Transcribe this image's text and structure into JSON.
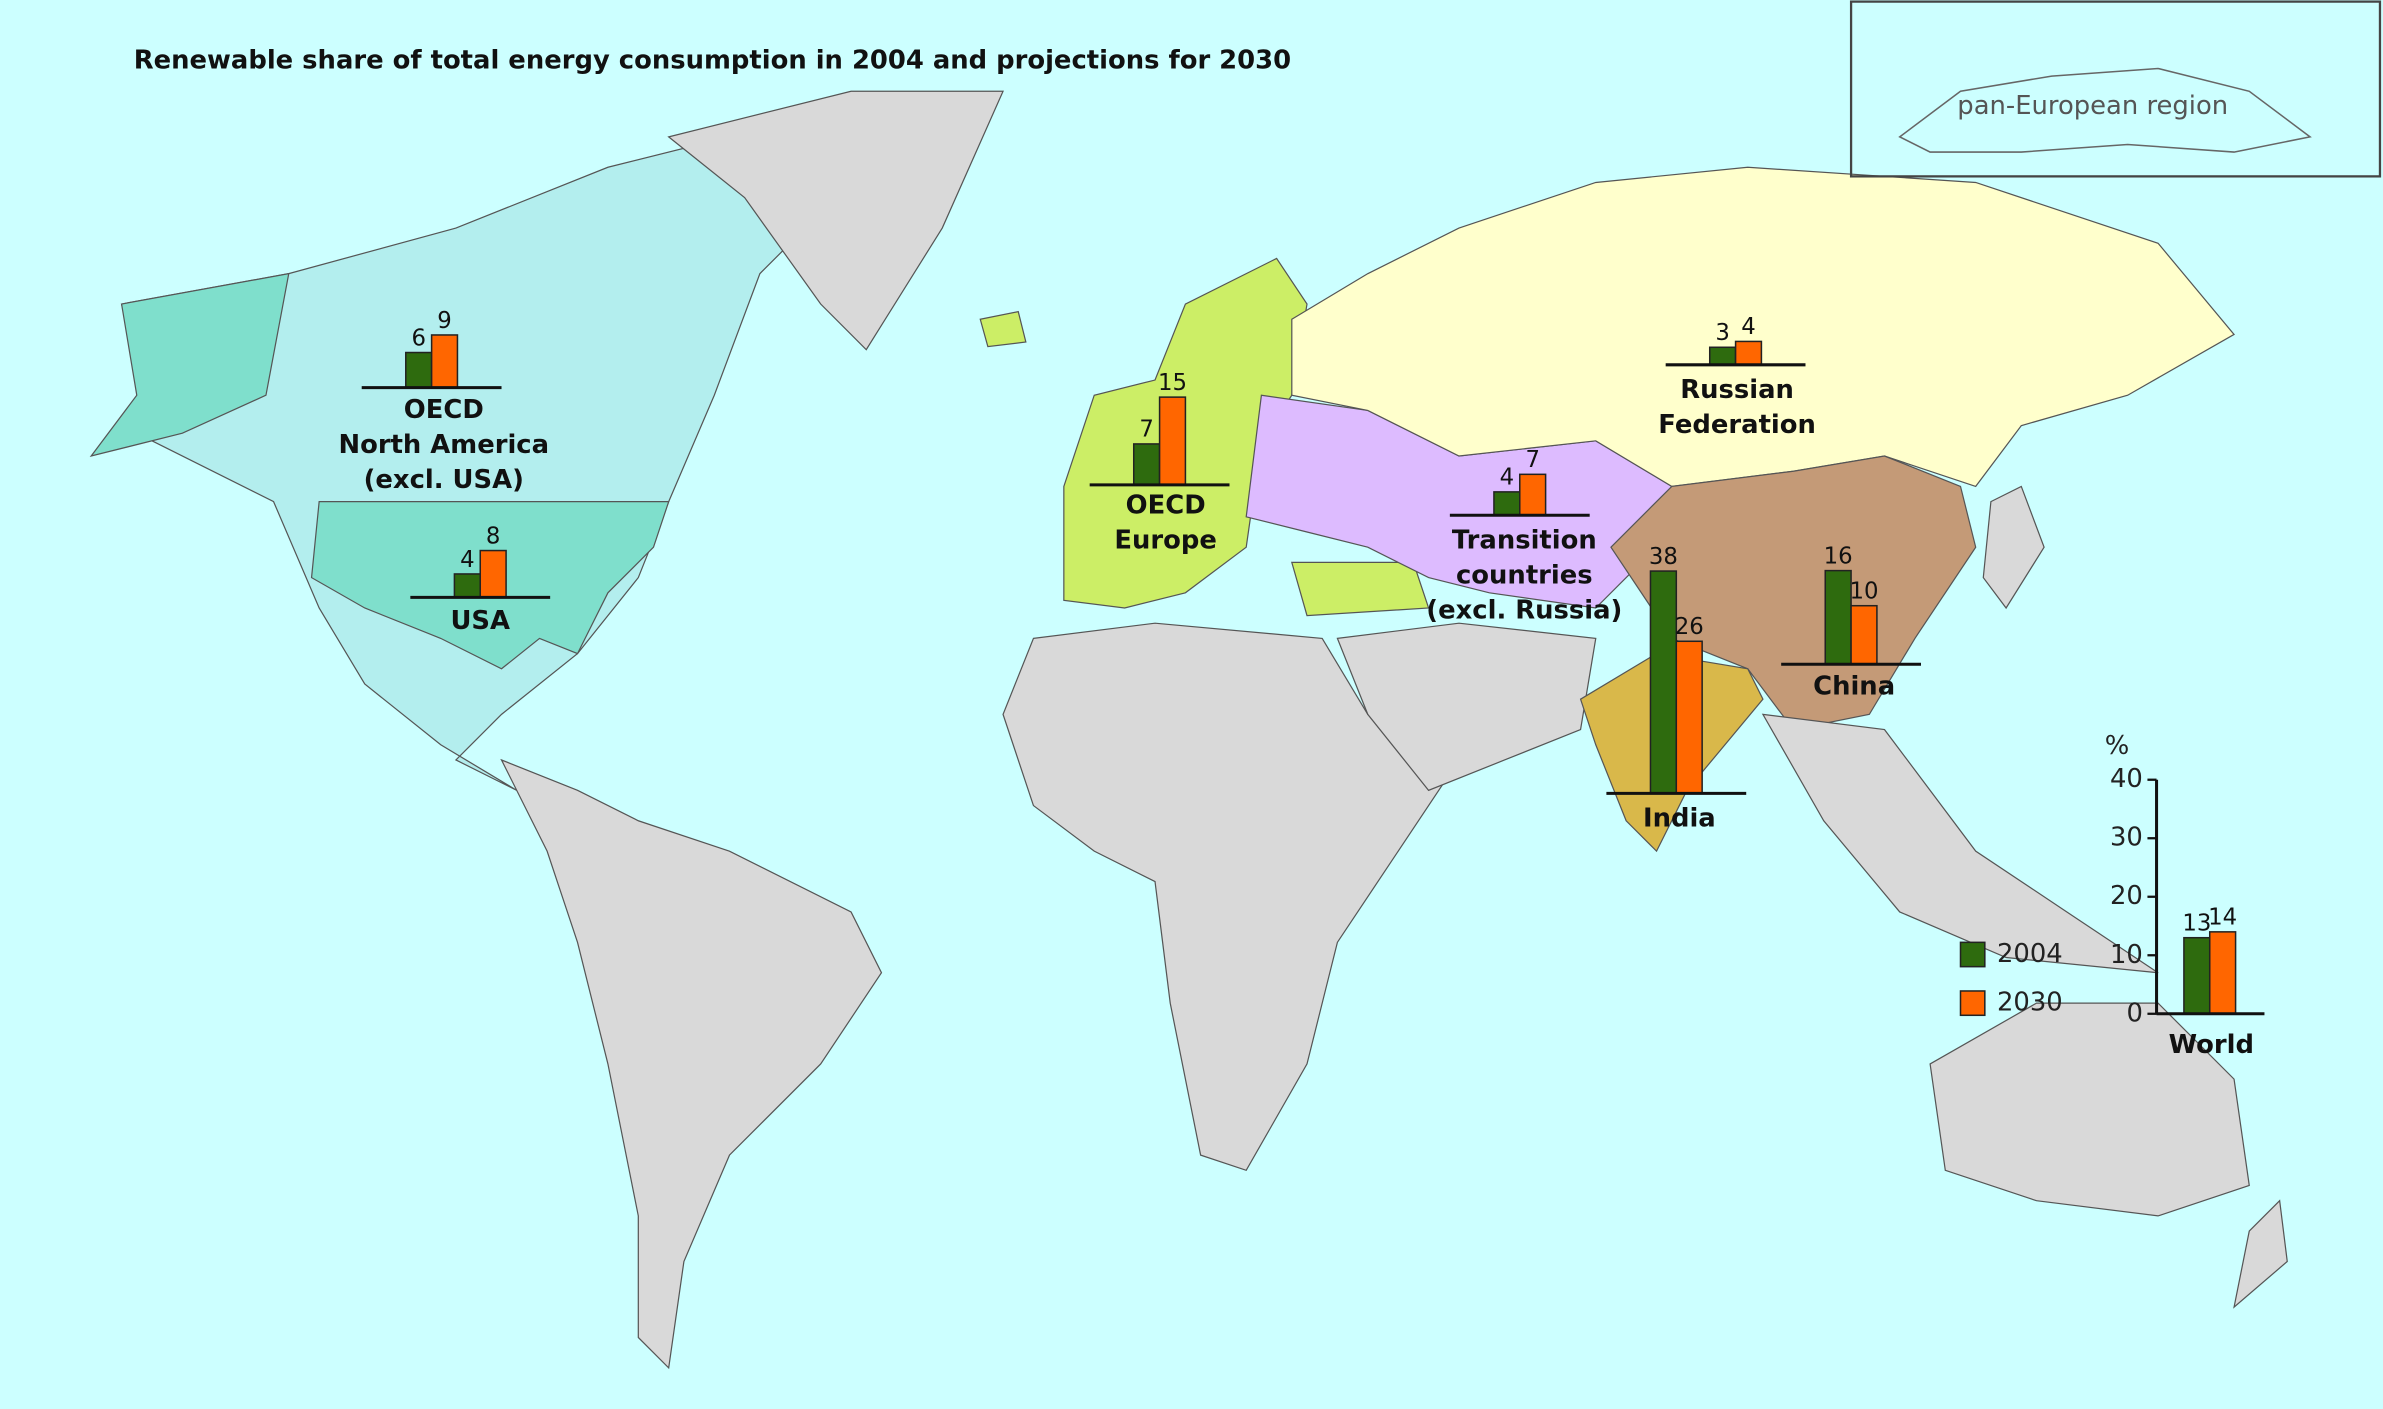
{
  "title": "Renewable share of total energy consumption in 2004 and projections for 2030",
  "inset_label": "pan-European region",
  "legend": [
    {
      "name": "2004",
      "color": "#2e6b0e"
    },
    {
      "name": "2030",
      "color": "#ff6600"
    }
  ],
  "axis": {
    "unit": "%",
    "ylim": [
      0,
      40
    ],
    "yticks": [
      0,
      10,
      20,
      30,
      40
    ]
  },
  "regions": [
    {
      "name_lines": [
        "OECD",
        "North America",
        "(excl. USA)"
      ],
      "values": [
        6,
        9
      ]
    },
    {
      "name_lines": [
        "USA"
      ],
      "values": [
        4,
        8
      ]
    },
    {
      "name_lines": [
        "OECD",
        "Europe"
      ],
      "values": [
        7,
        15
      ]
    },
    {
      "name_lines": [
        "Russian",
        "Federation"
      ],
      "values": [
        3,
        4
      ]
    },
    {
      "name_lines": [
        "Transition",
        "countries",
        "(excl. Russia)"
      ],
      "values": [
        4,
        7
      ]
    },
    {
      "name_lines": [
        "India"
      ],
      "values": [
        38,
        26
      ]
    },
    {
      "name_lines": [
        "China"
      ],
      "values": [
        16,
        10
      ]
    },
    {
      "name_lines": [
        "World"
      ],
      "values": [
        13,
        14
      ]
    }
  ]
}
